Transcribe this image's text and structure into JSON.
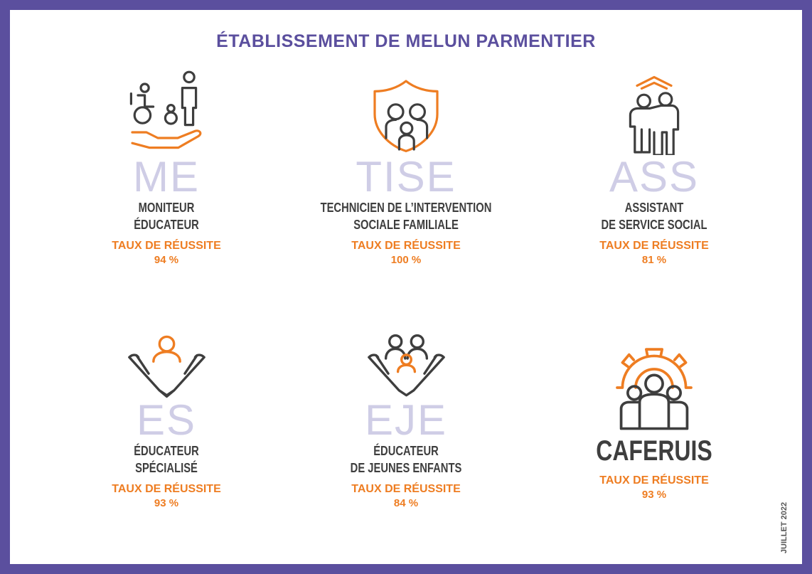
{
  "title": "ÉTABLISSEMENT DE MELUN PARMENTIER",
  "date": "JUILLET 2022",
  "colors": {
    "frame": "#5b4f9e",
    "accent": "#ee7d22",
    "text": "#3e3e3e",
    "watermark": "#cfcde6"
  },
  "cards": [
    {
      "abbr": "ME",
      "line1": "MONITEUR",
      "line2": "ÉDUCATEUR",
      "taux": "TAUX DE RÉUSSITE",
      "value": "94 %",
      "icon": "hand-family-icon"
    },
    {
      "abbr": "TISE",
      "line1": "TECHNICIEN DE L’INTERVENTION",
      "line2": "SOCIALE FAMILIALE",
      "taux": "TAUX DE RÉUSSITE",
      "value": "100 %",
      "icon": "shield-family-icon"
    },
    {
      "abbr": "ASS",
      "line1": "ASSISTANT",
      "line2": "DE SERVICE SOCIAL",
      "taux": "TAUX DE RÉUSSITE",
      "value": "81 %",
      "icon": "roof-people-icon"
    },
    {
      "abbr": "ES",
      "line1": "ÉDUCATEUR",
      "line2": "SPÉCIALISÉ",
      "taux": "TAUX DE RÉUSSITE",
      "value": "93 %",
      "icon": "hands-person-icon"
    },
    {
      "abbr": "EJE",
      "line1": "ÉDUCATEUR",
      "line2": "DE JEUNES ENFANTS",
      "taux": "TAUX DE RÉUSSITE",
      "value": "84 %",
      "icon": "hands-children-icon"
    },
    {
      "abbr": "CAFERUIS",
      "taux": "TAUX DE RÉUSSITE",
      "value": "93 %",
      "icon": "gear-team-icon"
    }
  ]
}
